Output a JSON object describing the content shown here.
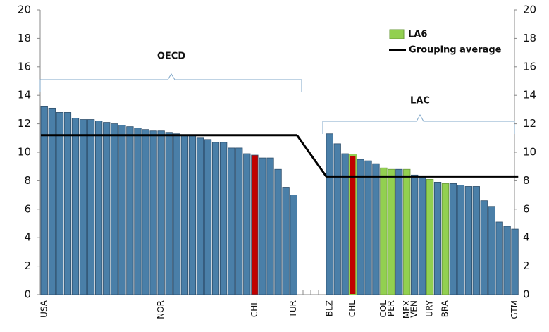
{
  "chart_data": {
    "type": "bar",
    "ylim": [
      0,
      20
    ],
    "yticks": [
      0,
      2,
      4,
      6,
      8,
      10,
      12,
      14,
      16,
      18,
      20
    ],
    "y2lim": [
      0,
      20
    ],
    "y2ticks": [
      0,
      2,
      4,
      6,
      8,
      10,
      12,
      14,
      16,
      18,
      20
    ],
    "bar_color": "#4a7fa8",
    "legend": [
      {
        "name": "LA6",
        "color": "#92d050"
      },
      {
        "name": "Grouping average",
        "color": "#000000"
      }
    ],
    "groups": [
      {
        "name": "OECD",
        "average": 11.2,
        "categories": [
          "USA",
          null,
          null,
          null,
          null,
          null,
          null,
          null,
          null,
          null,
          null,
          null,
          null,
          null,
          null,
          "NOR",
          null,
          null,
          null,
          null,
          null,
          null,
          null,
          null,
          null,
          null,
          null,
          "CHL",
          null,
          null,
          null,
          null,
          "TUR"
        ],
        "values": [
          13.2,
          13.1,
          12.8,
          12.8,
          12.4,
          12.3,
          12.3,
          12.2,
          12.1,
          12.0,
          11.9,
          11.8,
          11.7,
          11.6,
          11.5,
          11.5,
          11.4,
          11.3,
          11.2,
          11.2,
          11.0,
          10.9,
          10.7,
          10.7,
          10.3,
          10.3,
          9.9,
          9.8,
          9.6,
          9.6,
          8.8,
          7.5,
          7.0
        ],
        "colors": {
          "27": "#c00000"
        }
      },
      {
        "name": "LAC",
        "average": 8.3,
        "categories": [
          "BLZ",
          null,
          null,
          "CHL",
          null,
          null,
          null,
          "COL",
          "PER",
          null,
          "MEX",
          "VEN",
          null,
          "URY",
          null,
          "BRA",
          null,
          null,
          null,
          null,
          null,
          null,
          null,
          null,
          "GTM"
        ],
        "values": [
          11.3,
          10.6,
          9.9,
          9.8,
          9.5,
          9.4,
          9.2,
          8.9,
          8.8,
          8.8,
          8.8,
          8.4,
          8.3,
          8.1,
          7.9,
          7.8,
          7.8,
          7.7,
          7.6,
          7.6,
          6.6,
          6.2,
          5.1,
          4.8,
          4.6
        ],
        "colors": {
          "3": "#c00000",
          "7": "#92d050",
          "8": "#92d050",
          "10": "#92d050",
          "13": "#92d050",
          "15": "#92d050"
        }
      }
    ]
  }
}
